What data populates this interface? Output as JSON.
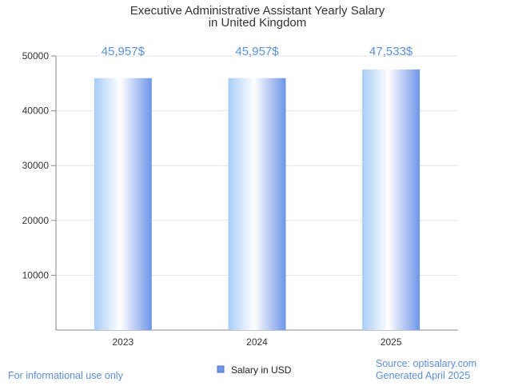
{
  "chart_data": {
    "type": "bar",
    "title": [
      "Executive Administrative Assistant Yearly Salary",
      "in United Kingdom"
    ],
    "categories": [
      "2023",
      "2024",
      "2025"
    ],
    "series": [
      {
        "name": "Salary in USD",
        "values": [
          45957,
          45957,
          47533
        ]
      }
    ],
    "value_labels": [
      "45,957$",
      "45,957$",
      "47,533$"
    ],
    "y_ticks": [
      10000,
      20000,
      30000,
      40000,
      50000
    ],
    "ylim": [
      0,
      50000
    ],
    "grid": true,
    "legend_position": "bottom-center",
    "xlabel": "",
    "ylabel": ""
  },
  "footer": {
    "left_note": "For informational use only",
    "source": "Source: optisalary.com",
    "generated": "Generated April 2025"
  },
  "colors": {
    "bar_light": "#ffffff",
    "bar_mid": "#a9cdf7",
    "bar_dark": "#6e95e8",
    "label_blue": "#5b8fd6",
    "grid": "#e6e6e6",
    "axis": "#888888"
  }
}
